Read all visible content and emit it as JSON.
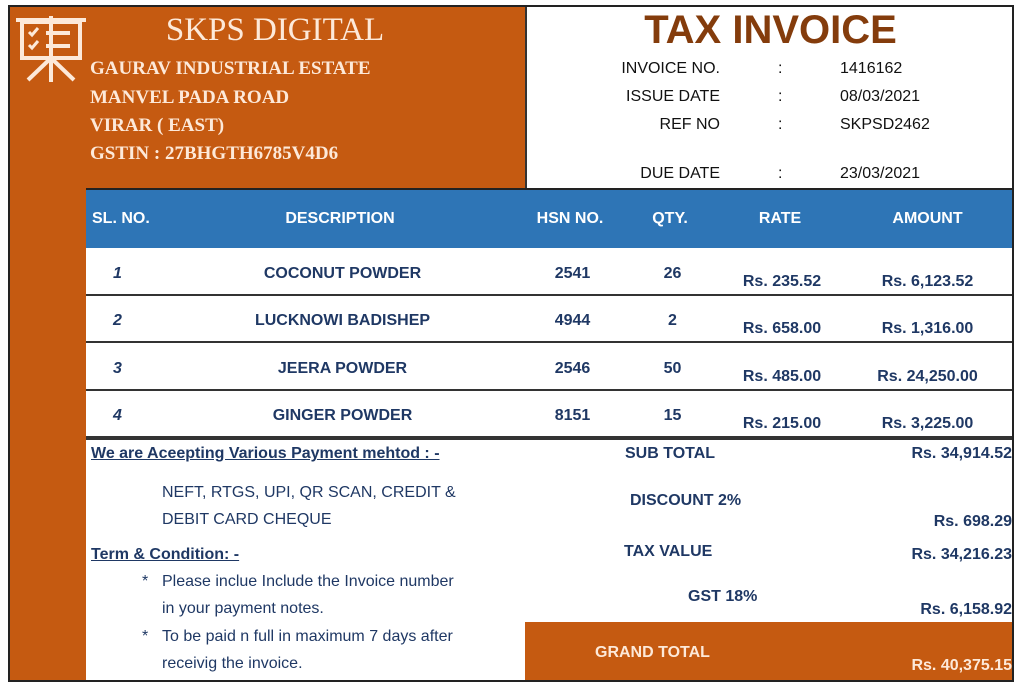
{
  "company": {
    "name": "SKPS DIGITAL",
    "address": [
      "GAURAV  INDUSTRIAL ESTATE",
      "MANVEL PADA ROAD",
      "VIRAR ( EAST)"
    ],
    "gstin": "GSTIN : 27BHGTH6785V4D6",
    "logo_icon": "presentation-board-checklist-icon"
  },
  "title": "TAX INVOICE",
  "meta": [
    {
      "label": "INVOICE NO.",
      "sep": ":",
      "value": "1416162"
    },
    {
      "label": "ISSUE DATE",
      "sep": ":",
      "value": "08/03/2021"
    },
    {
      "label": "REF NO",
      "sep": ":",
      "value": "SKPSD2462"
    },
    {
      "label": "DUE DATE",
      "sep": ":",
      "value": "23/03/2021"
    }
  ],
  "table": {
    "headers": [
      "SL. NO.",
      "DESCRIPTION",
      "HSN NO.",
      "QTY.",
      "RATE",
      "AMOUNT"
    ],
    "rows": [
      [
        "1",
        "COCONUT POWDER",
        "2541",
        "26",
        "Rs. 235.52",
        "Rs. 6,123.52"
      ],
      [
        "2",
        "LUCKNOWI BADISHEP",
        "4944",
        "2",
        "Rs. 658.00",
        "Rs. 1,316.00"
      ],
      [
        "3",
        "JEERA POWDER",
        "2546",
        "50",
        "Rs. 485.00",
        "Rs. 24,250.00"
      ],
      [
        "4",
        "GINGER POWDER",
        "8151",
        "15",
        "Rs. 215.00",
        "Rs. 3,225.00"
      ]
    ]
  },
  "payment": {
    "heading": "We are Aceepting Various Payment mehtod : -",
    "lines": [
      "NEFT, RTGS, UPI, QR SCAN, CREDIT &",
      "DEBIT CARD CHEQUE"
    ]
  },
  "terms": {
    "heading": "Term & Condition: -",
    "items": [
      [
        "Please inclue Include the Invoice number",
        "in your payment notes."
      ],
      [
        "To be paid n full in maximum 7 days after",
        "receivig the invoice."
      ]
    ],
    "bullet": "*"
  },
  "totals": {
    "sub_total": {
      "label": "SUB TOTAL",
      "value": "Rs. 34,914.52"
    },
    "discount": {
      "label": "DISCOUNT 2%",
      "value": "Rs. 698.29"
    },
    "tax_value": {
      "label": "TAX VALUE",
      "value": "Rs. 34,216.23"
    },
    "gst": {
      "label": "GST 18%",
      "value": "Rs. 6,158.92"
    },
    "grand_total": {
      "label": "GRAND TOTAL",
      "value": "Rs. 40,375.15"
    }
  },
  "colors": {
    "brand_orange": "#c55a11",
    "header_blue": "#2e75b6",
    "text_navy": "#1f3864",
    "title_brown": "#843c0c"
  }
}
